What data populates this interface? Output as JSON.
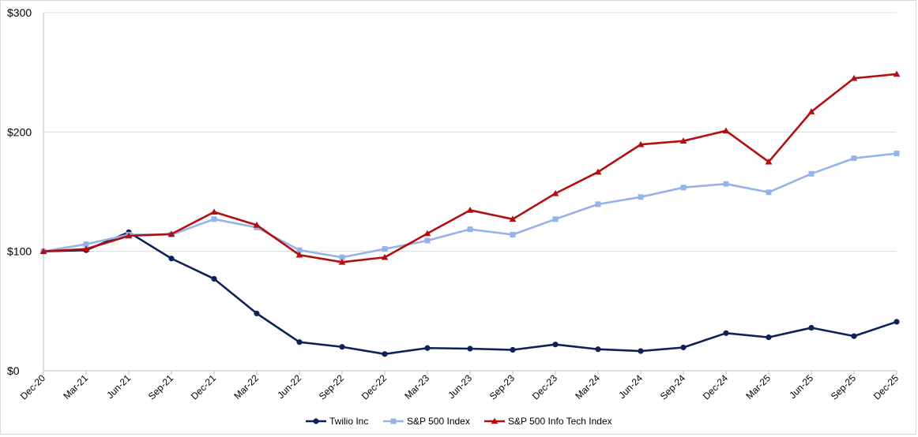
{
  "chart_data": {
    "type": "line",
    "title": "",
    "xlabel": "",
    "ylabel": "",
    "categories": [
      "Dec-20",
      "Mar-21",
      "Jun-21",
      "Sep-21",
      "Dec-21",
      "Mar-22",
      "Jun-22",
      "Sep-22",
      "Dec-22",
      "Mar-23",
      "Jun-23",
      "Sep-23",
      "Dec-23",
      "Mar-24",
      "Jun-24",
      "Sep-24",
      "Dec-24",
      "Mar-25",
      "Jun-25",
      "Sep-25",
      "Dec-25"
    ],
    "ylim": [
      0,
      300
    ],
    "yticks": [
      {
        "value": 0,
        "label": "$0"
      },
      {
        "value": 100,
        "label": "$100"
      },
      {
        "value": 200,
        "label": "$200"
      },
      {
        "value": 300,
        "label": "$300"
      }
    ],
    "grid": true,
    "legend_position": "bottom",
    "series": [
      {
        "name": "Twilio Inc",
        "color": "#0d2356",
        "marker": "circle",
        "values": [
          100,
          101,
          116,
          94,
          77,
          48,
          24,
          20,
          14,
          19,
          18.5,
          17.5,
          22,
          18,
          16.5,
          19.5,
          31.5,
          28,
          36,
          29,
          41
        ]
      },
      {
        "name": "S&P 500 Index",
        "color": "#95b3e8",
        "marker": "square",
        "values": [
          100,
          106,
          114,
          114,
          127,
          120,
          101,
          95,
          102,
          109,
          118.5,
          114,
          127,
          139.5,
          145.5,
          153.5,
          156.5,
          149.5,
          165,
          178,
          182
        ]
      },
      {
        "name": "S&P 500 Info Tech Index",
        "color": "#b21010",
        "marker": "triangle",
        "values": [
          100,
          102,
          113,
          114.5,
          133,
          122,
          97,
          91,
          95,
          115,
          134.5,
          127,
          148.5,
          166.5,
          189.5,
          192.5,
          201,
          175,
          217,
          245,
          248.5
        ]
      }
    ]
  }
}
